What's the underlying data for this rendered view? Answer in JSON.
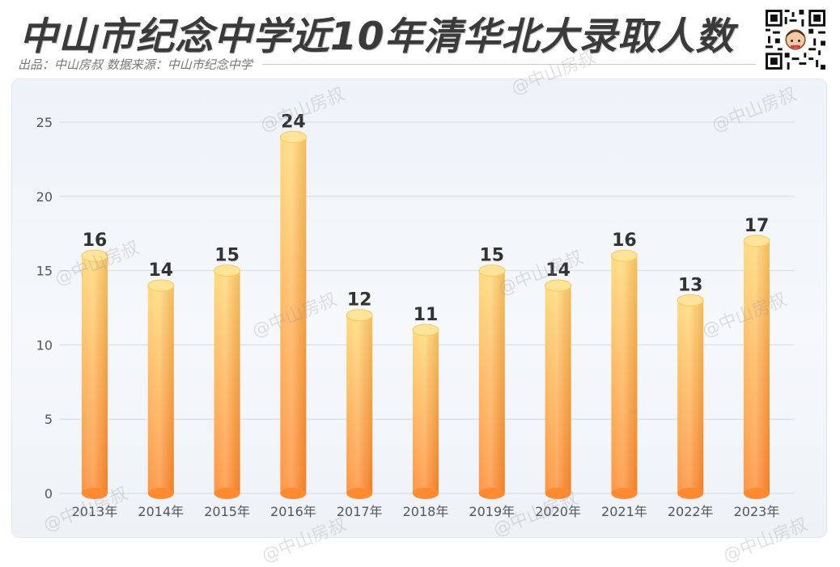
{
  "header": {
    "title": "中山市纪念中学近10年清华北大录取人数",
    "subtitle": "出品：中山房叔  数据来源：中山市纪念中学"
  },
  "watermark": "@中山房叔",
  "colors": {
    "bar_top": "#ffd773",
    "bar_bottom": "#ff8a30",
    "grid": "#d3dae3",
    "label": "#333333",
    "tick": "#555555"
  },
  "chart_data": {
    "type": "bar",
    "categories": [
      "2013年",
      "2014年",
      "2015年",
      "2016年",
      "2017年",
      "2018年",
      "2019年",
      "2020年",
      "2021年",
      "2022年",
      "2023年"
    ],
    "values": [
      16,
      14,
      15,
      24,
      12,
      11,
      15,
      14,
      16,
      13,
      17
    ],
    "yticks": [
      "0",
      "5",
      "10",
      "15",
      "20",
      "25"
    ],
    "ylim": [
      0,
      25
    ],
    "grid": true,
    "legend": "none"
  }
}
